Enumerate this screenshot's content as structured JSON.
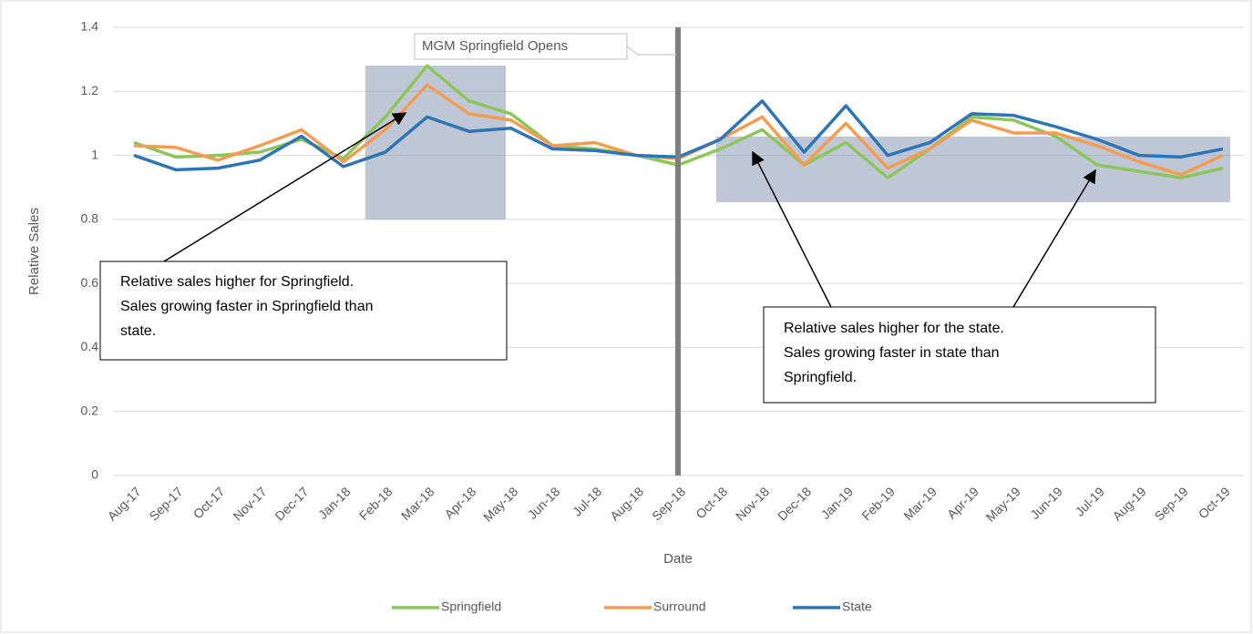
{
  "chart_data": {
    "type": "line",
    "y_label": "Relative Sales",
    "x_label": "Date",
    "categories": [
      "Aug-17",
      "Sep-17",
      "Oct-17",
      "Nov-17",
      "Dec-17",
      "Jan-18",
      "Feb-18",
      "Mar-18",
      "Apr-18",
      "May-18",
      "Jun-18",
      "Jul-18",
      "Aug-18",
      "Sep-18",
      "Oct-18",
      "Nov-18",
      "Dec-18",
      "Jan-19",
      "Feb-19",
      "Mar-19",
      "Apr-19",
      "May-19",
      "Jun-19",
      "Jul-19",
      "Aug-19",
      "Sep-19",
      "Oct-19"
    ],
    "series": [
      {
        "name": "Springfield",
        "color": "#8cc65a",
        "values": [
          1.04,
          0.995,
          1.0,
          1.01,
          1.05,
          0.99,
          1.12,
          1.28,
          1.17,
          1.13,
          1.03,
          1.02,
          1.0,
          0.97,
          1.02,
          1.08,
          0.97,
          1.04,
          0.93,
          1.02,
          1.12,
          1.11,
          1.06,
          0.97,
          0.95,
          0.93,
          0.96
        ]
      },
      {
        "name": "Surround",
        "color": "#f29d52",
        "values": [
          1.03,
          1.025,
          0.985,
          1.03,
          1.08,
          0.98,
          1.08,
          1.22,
          1.13,
          1.11,
          1.03,
          1.04,
          1.0,
          0.99,
          1.05,
          1.12,
          0.97,
          1.1,
          0.96,
          1.02,
          1.11,
          1.07,
          1.07,
          1.03,
          0.98,
          0.94,
          1.0
        ]
      },
      {
        "name": "State",
        "color": "#2e75b6",
        "values": [
          1.0,
          0.955,
          0.96,
          0.985,
          1.06,
          0.965,
          1.01,
          1.12,
          1.075,
          1.085,
          1.02,
          1.015,
          1.0,
          0.995,
          1.05,
          1.17,
          1.01,
          1.155,
          1.0,
          1.04,
          1.13,
          1.125,
          1.09,
          1.05,
          1.0,
          0.995,
          1.02
        ]
      }
    ],
    "ylim": [
      0,
      1.4
    ],
    "yticks": [
      0,
      0.2,
      0.4,
      0.6,
      0.8,
      1,
      1.2,
      1.4
    ],
    "grid": true,
    "legend": "bottom",
    "event_label": "MGM Springfield Opens",
    "annotations": [
      {
        "lines": [
          "Relative sales higher for Springfield.",
          "Sales growing faster in Springfield than",
          "state."
        ]
      },
      {
        "lines": [
          "Relative sales higher for the state.",
          "Sales growing faster in state than",
          "Springfield."
        ]
      }
    ]
  }
}
